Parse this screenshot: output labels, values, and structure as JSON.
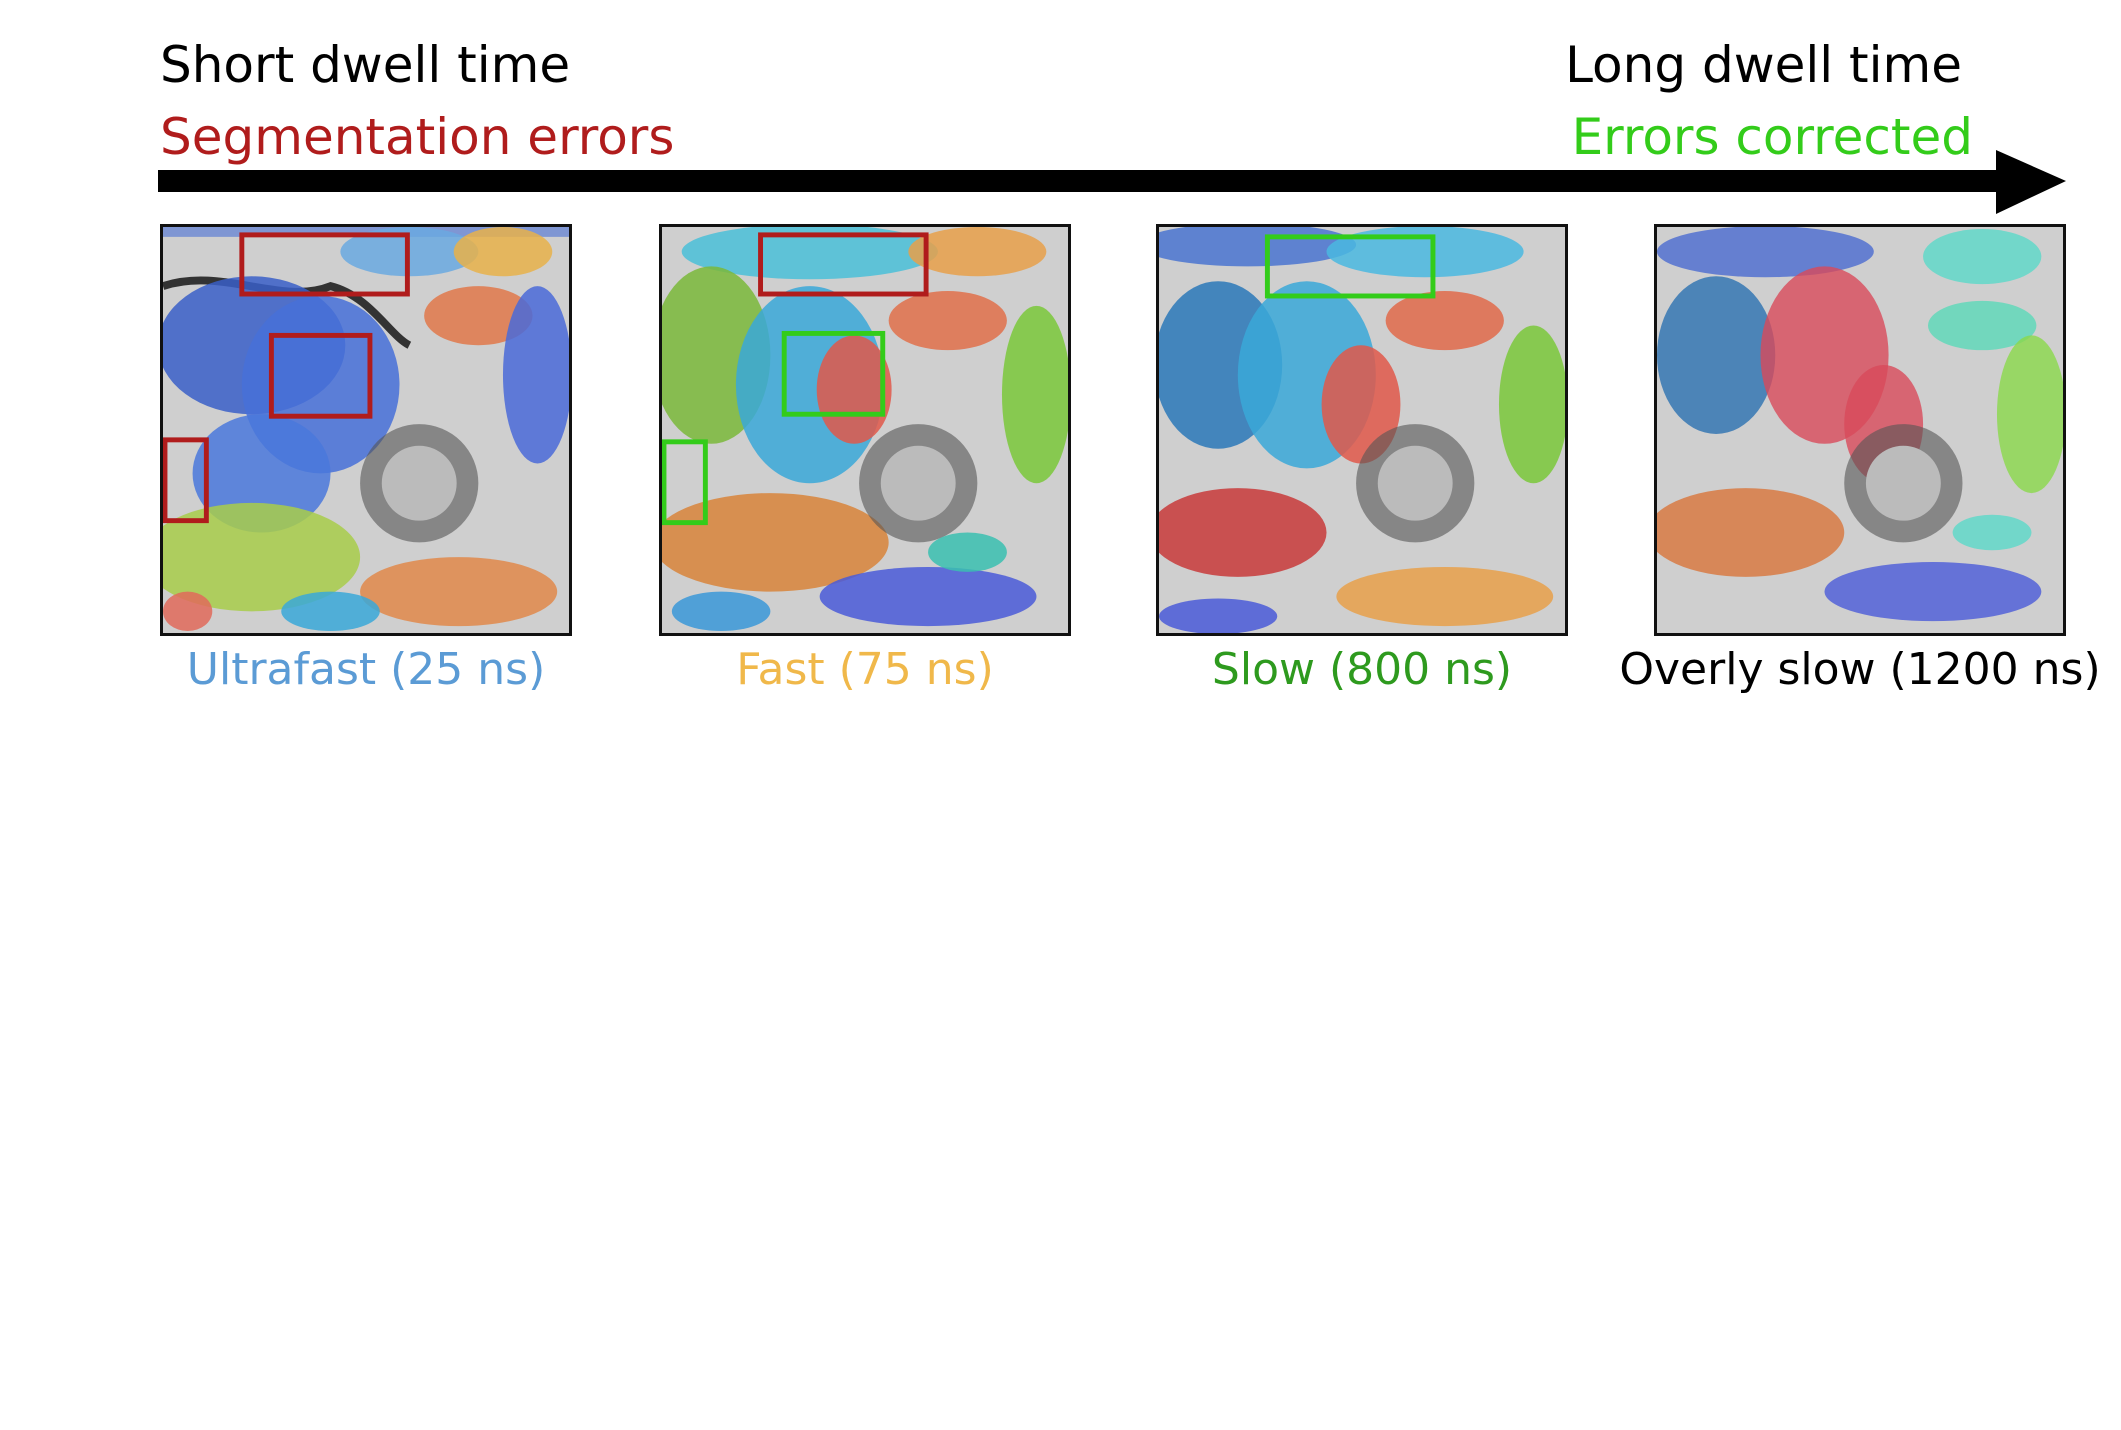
{
  "header": {
    "left_title": "Short dwell time",
    "left_subtitle": "Segmentation errors",
    "right_title": "Long dwell time",
    "right_subtitle": "Errors corrected"
  },
  "colors": {
    "error": "#b01c1c",
    "corrected": "#33cc1a",
    "arrow": "#000000"
  },
  "panels": [
    {
      "caption": "Ultrafast (25 ns)",
      "caption_color": "#5b9bd5"
    },
    {
      "caption": "Fast (75 ns)",
      "caption_color": "#f0b84a"
    },
    {
      "caption": "Slow (800 ns)",
      "caption_color": "#2e9a1e"
    },
    {
      "caption": "Overly slow (1200 ns)",
      "caption_color": "#000000"
    }
  ]
}
